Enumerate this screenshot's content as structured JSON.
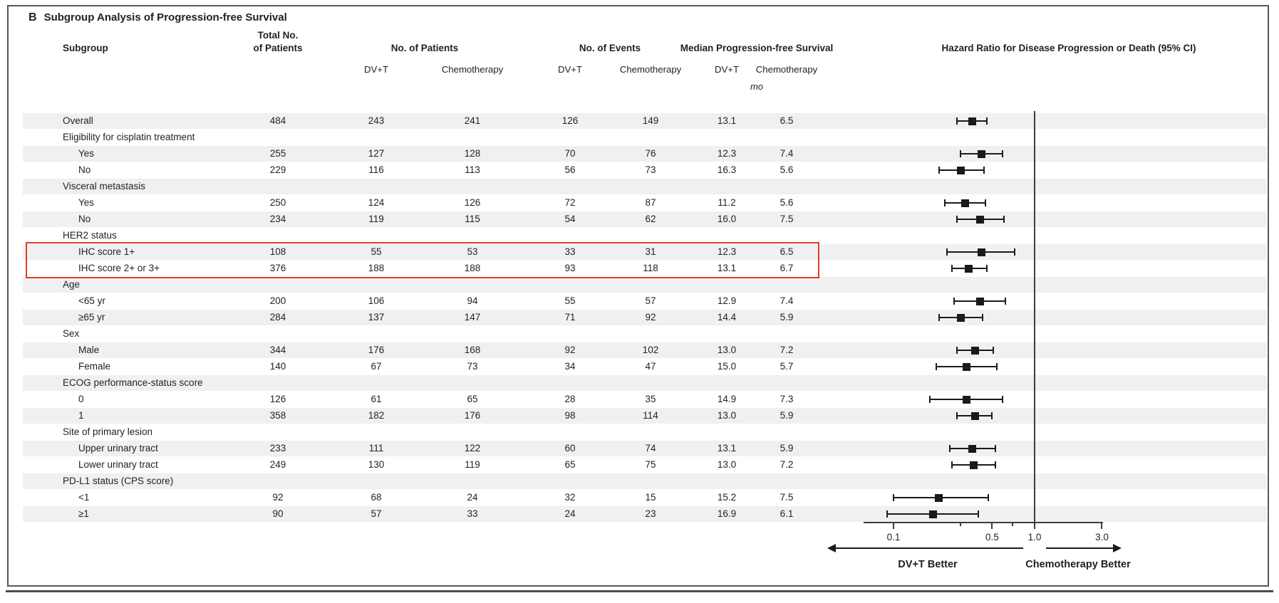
{
  "title": {
    "panel": "B",
    "text": "Subgroup Analysis of Progression-free Survival"
  },
  "columns": {
    "subgroup": "Subgroup",
    "total_line1": "Total No.",
    "total_line2": "of Patients",
    "no_patients": "No. of Patients",
    "no_events": "No. of Events",
    "median_pfs": "Median Progression-free Survival",
    "hazard_ratio": "Hazard Ratio for Disease Progression or Death (95% CI)",
    "dvt": "DV+T",
    "chemo": "Chemotherapy",
    "unit": "mo"
  },
  "colors": {
    "highlight_red": "#e23b2e",
    "row_band": "#f0f0f1",
    "text": "#231f20"
  },
  "highlight": {
    "rows": [
      "IHC score 1+",
      "IHC score 2+ or 3+"
    ]
  },
  "chart_data": {
    "type": "forest",
    "x_scale": "log",
    "x_ticks": [
      "0.1",
      "0.5",
      "1.0",
      "3.0"
    ],
    "x_tick_values": [
      0.1,
      0.5,
      1.0,
      3.0
    ],
    "x_minor_tick_values": [
      0.3,
      0.7
    ],
    "x_range": [
      0.06,
      3.0
    ],
    "reference_line": 1.0,
    "left_label": "DV+T Better",
    "right_label": "Chemotherapy Better",
    "rows": [
      {
        "label": "Overall",
        "indent": false,
        "total": "484",
        "dvt_patients": "243",
        "chemo_patients": "241",
        "dvt_events": "126",
        "chemo_events": "149",
        "median_dvt": "13.1",
        "median_chemo": "6.5",
        "hr": 0.36,
        "ci_low": 0.28,
        "ci_high": 0.46,
        "hr_text": "0.36 (0.28–0.46)"
      },
      {
        "label": "Eligibility for cisplatin treatment",
        "header": true
      },
      {
        "label": "Yes",
        "indent": true,
        "total": "255",
        "dvt_patients": "127",
        "chemo_patients": "128",
        "dvt_events": "70",
        "chemo_events": "76",
        "median_dvt": "12.3",
        "median_chemo": "7.4",
        "hr": 0.42,
        "ci_low": 0.3,
        "ci_high": 0.59,
        "hr_text": "0.42 (0.30–0.59)"
      },
      {
        "label": "No",
        "indent": true,
        "total": "229",
        "dvt_patients": "116",
        "chemo_patients": "113",
        "dvt_events": "56",
        "chemo_events": "73",
        "median_dvt": "16.3",
        "median_chemo": "5.6",
        "hr": 0.3,
        "ci_low": 0.21,
        "ci_high": 0.44,
        "hr_text": "0.30 (0.21–0.44)"
      },
      {
        "label": "Visceral metastasis",
        "header": true
      },
      {
        "label": "Yes",
        "indent": true,
        "total": "250",
        "dvt_patients": "124",
        "chemo_patients": "126",
        "dvt_events": "72",
        "chemo_events": "87",
        "median_dvt": "11.2",
        "median_chemo": "5.6",
        "hr": 0.32,
        "ci_low": 0.23,
        "ci_high": 0.45,
        "hr_text": "0.32 (0.23–0.45)"
      },
      {
        "label": "No",
        "indent": true,
        "total": "234",
        "dvt_patients": "119",
        "chemo_patients": "115",
        "dvt_events": "54",
        "chemo_events": "62",
        "median_dvt": "16.0",
        "median_chemo": "7.5",
        "hr": 0.41,
        "ci_low": 0.28,
        "ci_high": 0.61,
        "hr_text": "0.41 (0.28–0.61)"
      },
      {
        "label": "HER2 status",
        "header": true
      },
      {
        "label": "IHC score 1+",
        "indent": true,
        "total": "108",
        "dvt_patients": "55",
        "chemo_patients": "53",
        "dvt_events": "33",
        "chemo_events": "31",
        "median_dvt": "12.3",
        "median_chemo": "6.5",
        "hr": 0.42,
        "ci_low": 0.24,
        "ci_high": 0.72,
        "hr_text": "0.42 (0.24–0.72)"
      },
      {
        "label": "IHC score 2+ or 3+",
        "indent": true,
        "total": "376",
        "dvt_patients": "188",
        "chemo_patients": "188",
        "dvt_events": "93",
        "chemo_events": "118",
        "median_dvt": "13.1",
        "median_chemo": "6.7",
        "hr": 0.34,
        "ci_low": 0.26,
        "ci_high": 0.46,
        "hr_text": "0.34 (0.26–0.46)"
      },
      {
        "label": "Age",
        "header": true
      },
      {
        "label": "<65 yr",
        "indent": true,
        "total": "200",
        "dvt_patients": "106",
        "chemo_patients": "94",
        "dvt_events": "55",
        "chemo_events": "57",
        "median_dvt": "12.9",
        "median_chemo": "7.4",
        "hr": 0.41,
        "ci_low": 0.27,
        "ci_high": 0.62,
        "hr_text": "0.41 (0.27–0.62)"
      },
      {
        "label": "≥65 yr",
        "indent": true,
        "total": "284",
        "dvt_patients": "137",
        "chemo_patients": "147",
        "dvt_events": "71",
        "chemo_events": "92",
        "median_dvt": "14.4",
        "median_chemo": "5.9",
        "hr": 0.3,
        "ci_low": 0.21,
        "ci_high": 0.43,
        "hr_text": "0.30 (0.21–0.43)"
      },
      {
        "label": "Sex",
        "header": true
      },
      {
        "label": "Male",
        "indent": true,
        "total": "344",
        "dvt_patients": "176",
        "chemo_patients": "168",
        "dvt_events": "92",
        "chemo_events": "102",
        "median_dvt": "13.0",
        "median_chemo": "7.2",
        "hr": 0.38,
        "ci_low": 0.28,
        "ci_high": 0.51,
        "hr_text": "0.38 (0.28–0.51)"
      },
      {
        "label": "Female",
        "indent": true,
        "total": "140",
        "dvt_patients": "67",
        "chemo_patients": "73",
        "dvt_events": "34",
        "chemo_events": "47",
        "median_dvt": "15.0",
        "median_chemo": "5.7",
        "hr": 0.33,
        "ci_low": 0.2,
        "ci_high": 0.54,
        "hr_text": "0.33 (0.20–0.54)"
      },
      {
        "label": "ECOG performance-status score",
        "header": true
      },
      {
        "label": "0",
        "indent": true,
        "total": "126",
        "dvt_patients": "61",
        "chemo_patients": "65",
        "dvt_events": "28",
        "chemo_events": "35",
        "median_dvt": "14.9",
        "median_chemo": "7.3",
        "hr": 0.33,
        "ci_low": 0.18,
        "ci_high": 0.59,
        "hr_text": "0.33 (0.18–0.59)"
      },
      {
        "label": "1",
        "indent": true,
        "total": "358",
        "dvt_patients": "182",
        "chemo_patients": "176",
        "dvt_events": "98",
        "chemo_events": "114",
        "median_dvt": "13.0",
        "median_chemo": "5.9",
        "hr": 0.38,
        "ci_low": 0.28,
        "ci_high": 0.5,
        "hr_text": "0.38 (0.28–0.50)"
      },
      {
        "label": "Site of primary lesion",
        "header": true
      },
      {
        "label": "Upper urinary tract",
        "indent": true,
        "total": "233",
        "dvt_patients": "111",
        "chemo_patients": "122",
        "dvt_events": "60",
        "chemo_events": "74",
        "median_dvt": "13.1",
        "median_chemo": "5.9",
        "hr": 0.36,
        "ci_low": 0.25,
        "ci_high": 0.53,
        "hr_text": "0.36 (0.25–0.53)"
      },
      {
        "label": "Lower urinary tract",
        "indent": true,
        "total": "249",
        "dvt_patients": "130",
        "chemo_patients": "119",
        "dvt_events": "65",
        "chemo_events": "75",
        "median_dvt": "13.0",
        "median_chemo": "7.2",
        "hr": 0.37,
        "ci_low": 0.26,
        "ci_high": 0.53,
        "hr_text": "0.37 (0.26–0.53)"
      },
      {
        "label": "PD-L1 status (CPS score)",
        "header": true
      },
      {
        "label": "<1",
        "indent": true,
        "total": "92",
        "dvt_patients": "68",
        "chemo_patients": "24",
        "dvt_events": "32",
        "chemo_events": "15",
        "median_dvt": "15.2",
        "median_chemo": "7.5",
        "hr": 0.21,
        "ci_low": 0.1,
        "ci_high": 0.47,
        "hr_text": "0.21 (0.10–0.47)"
      },
      {
        "label": "≥1",
        "indent": true,
        "total": "90",
        "dvt_patients": "57",
        "chemo_patients": "33",
        "dvt_events": "24",
        "chemo_events": "23",
        "median_dvt": "16.9",
        "median_chemo": "6.1",
        "hr": 0.19,
        "ci_low": 0.09,
        "ci_high": 0.4,
        "hr_text": "0.19 (0.09–0.40)"
      }
    ]
  }
}
